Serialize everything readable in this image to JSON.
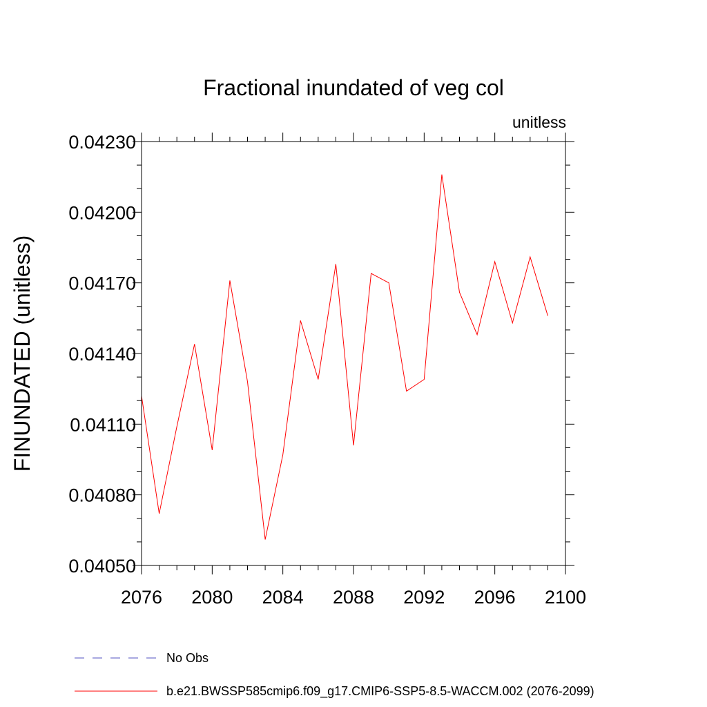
{
  "chart_data": {
    "type": "line",
    "title": "Fractional inundated of veg col",
    "units_label": "unitless",
    "xlabel": "",
    "ylabel": "FINUNDATED  (unitless)",
    "xlim": [
      2076,
      2100
    ],
    "ylim": [
      0.0405,
      0.0423
    ],
    "x_ticks": [
      2076,
      2080,
      2084,
      2088,
      2092,
      2096,
      2100
    ],
    "x_tick_labels": [
      "2076",
      "2080",
      "2084",
      "2088",
      "2092",
      "2096",
      "2100"
    ],
    "y_ticks": [
      0.0405,
      0.0408,
      0.0411,
      0.0414,
      0.0417,
      0.042,
      0.0423
    ],
    "y_tick_labels": [
      "0.04050",
      "0.04080",
      "0.04110",
      "0.04140",
      "0.04170",
      "0.04200",
      "0.04230"
    ],
    "grid": false,
    "legend_position": "bottom",
    "series": [
      {
        "name": "b.e21.BWSSP585cmip6.f09_g17.CMIP6-SSP5-8.5-WACCM.002 (2076-2099)",
        "color": "#ff0000",
        "style": "solid",
        "x": [
          2076,
          2077,
          2078,
          2079,
          2080,
          2081,
          2082,
          2083,
          2084,
          2085,
          2086,
          2087,
          2088,
          2089,
          2090,
          2091,
          2092,
          2093,
          2094,
          2095,
          2096,
          2097,
          2098,
          2099
        ],
        "y": [
          0.04122,
          0.04072,
          0.04109,
          0.04144,
          0.04099,
          0.04171,
          0.04128,
          0.04061,
          0.04097,
          0.04154,
          0.04129,
          0.04178,
          0.04101,
          0.04174,
          0.0417,
          0.04124,
          0.04129,
          0.04216,
          0.04166,
          0.04148,
          0.04179,
          0.04153,
          0.04181,
          0.04156
        ]
      },
      {
        "name": "No Obs",
        "color": "#5050c0",
        "style": "dashed",
        "x": [],
        "y": []
      }
    ]
  }
}
